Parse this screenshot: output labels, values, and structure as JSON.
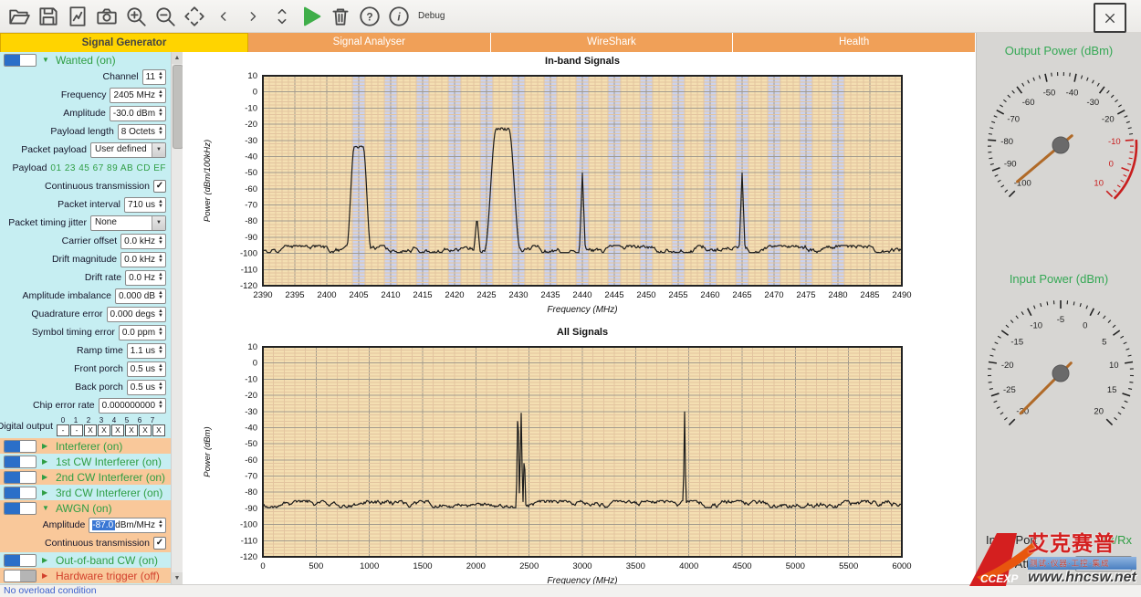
{
  "toolbar": {
    "debug_label": "Debug"
  },
  "tabs": [
    {
      "label": "Signal Generator",
      "active": true
    },
    {
      "label": "Signal Analyser",
      "active": false
    },
    {
      "label": "WireShark",
      "active": false
    },
    {
      "label": "Health",
      "active": false
    }
  ],
  "sidebar": {
    "rows": [
      {
        "type": "header",
        "title": "Wanted (on)",
        "on": true,
        "expanded": true
      },
      {
        "type": "spinner",
        "label": "Channel",
        "value": "11"
      },
      {
        "type": "spinner",
        "label": "Frequency",
        "value": "2405 MHz"
      },
      {
        "type": "spinner",
        "label": "Amplitude",
        "value": "-30.0 dBm"
      },
      {
        "type": "spinner",
        "label": "Payload length",
        "value": "8 Octets"
      },
      {
        "type": "dropdown",
        "label": "Packet payload",
        "value": "User defined"
      },
      {
        "type": "static",
        "label": "Payload",
        "value": "01 23 45 67 89 AB CD EF"
      },
      {
        "type": "check",
        "label": "Continuous transmission",
        "checked": true
      },
      {
        "type": "spinner",
        "label": "Packet interval",
        "value": "710 us"
      },
      {
        "type": "dropdown",
        "label": "Packet timing jitter",
        "value": "None"
      },
      {
        "type": "spinner",
        "label": "Carrier offset",
        "value": "0.0 kHz"
      },
      {
        "type": "spinner",
        "label": "Drift magnitude",
        "value": "0.0 kHz"
      },
      {
        "type": "spinner",
        "label": "Drift rate",
        "value": "0.0 Hz"
      },
      {
        "type": "spinner",
        "label": "Amplitude imbalance",
        "value": "0.000 dB"
      },
      {
        "type": "spinner",
        "label": "Quadrature error",
        "value": "0.000 degs"
      },
      {
        "type": "spinner",
        "label": "Symbol timing error",
        "value": "0.0 ppm"
      },
      {
        "type": "spinner",
        "label": "Ramp time",
        "value": "1.1 us"
      },
      {
        "type": "spinner",
        "label": "Front porch",
        "value": "0.5 us"
      },
      {
        "type": "spinner",
        "label": "Back porch",
        "value": "0.5 us"
      },
      {
        "type": "spinner",
        "label": "Chip error rate",
        "value": "0.000000000"
      },
      {
        "type": "digital",
        "label": "Digital output",
        "headers": [
          "0",
          "1",
          "2",
          "3",
          "4",
          "5",
          "6",
          "7"
        ],
        "cells": [
          "-",
          "-",
          "X",
          "X",
          "X",
          "X",
          "X",
          "X"
        ]
      },
      {
        "type": "header",
        "title": "Interferer (on)",
        "on": true,
        "expanded": false
      },
      {
        "type": "header",
        "title": "1st CW Interferer (on)",
        "on": true,
        "expanded": false
      },
      {
        "type": "header",
        "title": "2nd CW Interferer (on)",
        "on": true,
        "expanded": false
      },
      {
        "type": "header",
        "title": "3rd CW Interferer (on)",
        "on": true,
        "expanded": false
      },
      {
        "type": "header",
        "title": "AWGN (on)",
        "on": true,
        "expanded": true
      },
      {
        "type": "spinner",
        "label": "Amplitude",
        "value": "-87.0",
        "unit": " dBm/MHz",
        "selected": true
      },
      {
        "type": "check",
        "label": "Continuous transmission",
        "checked": true
      },
      {
        "type": "header",
        "title": "Out-of-band CW (on)",
        "on": true,
        "expanded": false
      },
      {
        "type": "header",
        "title": "Hardware trigger (off)",
        "on": false,
        "expanded": false
      }
    ]
  },
  "chart_data": [
    {
      "type": "line",
      "title": "In-band Signals",
      "xlabel": "Frequency (MHz)",
      "ylabel": "Power (dBm/100kHz)",
      "xlim": [
        2390,
        2490
      ],
      "ylim": [
        -120,
        10
      ],
      "xtick": 5,
      "ytick": 10,
      "grid": true,
      "noise_floor_dbm": -97,
      "channel_bands": {
        "start": 2405,
        "end": 2480,
        "step": 5,
        "width": 2
      },
      "peaks": [
        {
          "freq": 2405,
          "level": -34,
          "shape": "burst",
          "top_width": 1.4,
          "base_width": 3.8
        },
        {
          "freq": 2423.5,
          "level": -77,
          "shape": "cw",
          "base_width": 0.9
        },
        {
          "freq": 2427.5,
          "level": -23,
          "shape": "burst",
          "top_width": 2.0,
          "base_width": 5.5
        },
        {
          "freq": 2440,
          "level": -50,
          "shape": "cw",
          "base_width": 0.9
        },
        {
          "freq": 2465,
          "level": -50,
          "shape": "cw",
          "base_width": 0.9
        }
      ]
    },
    {
      "type": "line",
      "title": "All Signals",
      "xlabel": "Frequency (MHz)",
      "ylabel": "Power (dBm)",
      "xlim": [
        0,
        6000
      ],
      "ylim": [
        -120,
        10
      ],
      "xtick": 500,
      "ytick": 10,
      "grid": true,
      "noise_floor_dbm": -87,
      "channel_bands": null,
      "peaks": [
        {
          "freq": 2395,
          "level": -20,
          "shape": "cw",
          "base_width": 30
        },
        {
          "freq": 2425,
          "level": -28,
          "shape": "cw",
          "base_width": 30
        },
        {
          "freq": 2455,
          "level": -52,
          "shape": "cw",
          "base_width": 25
        },
        {
          "freq": 3960,
          "level": -30,
          "shape": "cw",
          "base_width": 25
        }
      ]
    }
  ],
  "gauges": [
    {
      "title": "Output Power (dBm)",
      "min": -100,
      "max": 10,
      "major_step": 10,
      "minor_step": 2,
      "red_zone": [
        -10,
        10
      ],
      "needle_value": -98
    },
    {
      "title": "Input Power (dBm)",
      "min": -30,
      "max": 20,
      "major_step": 5,
      "minor_step": 1,
      "red_zone": null,
      "needle_value": -30
    }
  ],
  "right_panel": {
    "input_port_label": "Input Port",
    "input_port_value": "Tx/Rx",
    "input_attenuation_label": "Input Attenuation",
    "input_attenuation_value": "dB"
  },
  "statusbar": {
    "text": "No overload condition"
  },
  "watermark": {
    "logo_text": "CCEXP",
    "cn_title": "艾克赛普",
    "tagline": "测试·仪器·工控·集成",
    "url": "www.hncsw.net"
  }
}
